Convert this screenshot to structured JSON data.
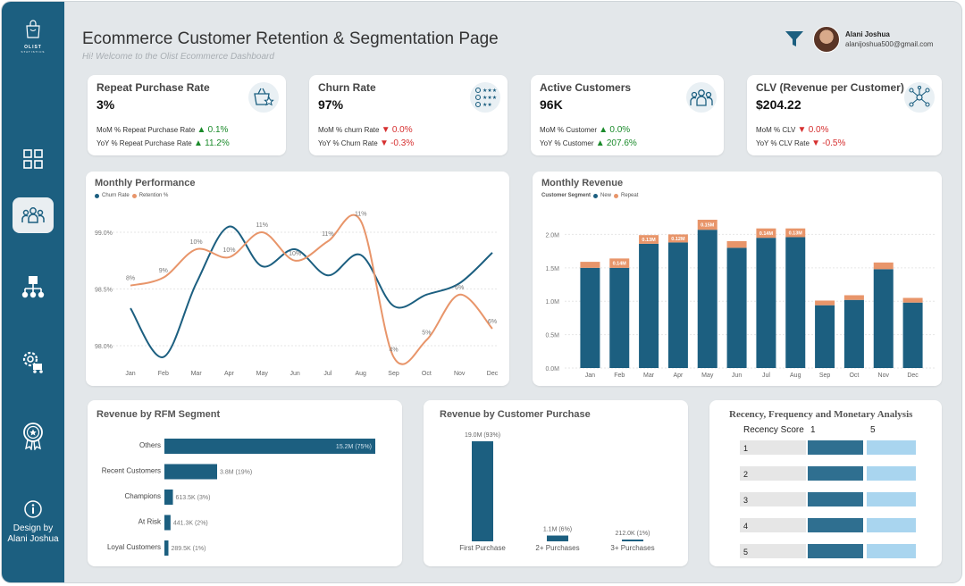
{
  "colors": {
    "sidebar": "#1c5f80",
    "primary": "#1c5f80",
    "secondary": "#e8956a",
    "light": "#a9d5ef",
    "up": "#1a8a2a",
    "down": "#d63030"
  },
  "sidebar": {
    "logo_text": "OLIST",
    "logo_subtext": "STATISTICS",
    "icons": [
      "grid-icon",
      "people-icon",
      "network-icon",
      "settings-truck-icon",
      "award-icon",
      "info-icon"
    ],
    "design_by": [
      "Design by",
      "Alani Joshua"
    ]
  },
  "header": {
    "title": "Ecommerce Customer Retention & Segmentation Page",
    "subtitle": "Hi! Welcome to the Olist Ecommerce Dashboard",
    "user_name": "Alani Joshua",
    "user_email": "alanijoshua500@gmail.com"
  },
  "kpis": [
    {
      "title": "Repeat Purchase Rate",
      "value": "3%",
      "icon": "basket-star-icon",
      "mom_label": "MoM % Repeat Purchase Rate",
      "mom_arrow": "▲",
      "mom_value": "0.1%",
      "mom_dir": "up",
      "yoy_label": "YoY % Repeat Purchase Rate",
      "yoy_arrow": "▲",
      "yoy_value": "11.2%",
      "yoy_dir": "up"
    },
    {
      "title": "Churn Rate",
      "value": "97%",
      "icon": "rating-people-icon",
      "mom_label": "MoM % churn Rate",
      "mom_arrow": "▼",
      "mom_value": "0.0%",
      "mom_dir": "down",
      "yoy_label": "YoY % Churn Rate",
      "yoy_arrow": "▼",
      "yoy_value": "-0.3%",
      "yoy_dir": "down"
    },
    {
      "title": "Active Customers",
      "value": "96K",
      "icon": "group-icon",
      "mom_label": "MoM % Customer",
      "mom_arrow": "▲",
      "mom_value": "0.0%",
      "mom_dir": "up",
      "yoy_label": "YoY % Customer",
      "yoy_arrow": "▲",
      "yoy_value": "207.6%",
      "yoy_dir": "up"
    },
    {
      "title": "CLV (Revenue per Customer)",
      "value": "$204.22",
      "icon": "network-nodes-icon",
      "mom_label": "MoM % CLV",
      "mom_arrow": "▼",
      "mom_value": "0.0%",
      "mom_dir": "down",
      "yoy_label": "YoY % CLV Rate",
      "yoy_arrow": "▼",
      "yoy_value": "-0.5%",
      "yoy_dir": "down"
    }
  ],
  "chart_data": [
    {
      "type": "line",
      "title": "Monthly Performance",
      "categories": [
        "Jan",
        "Feb",
        "Mar",
        "Apr",
        "May",
        "Jun",
        "Jul",
        "Aug",
        "Sep",
        "Oct",
        "Nov",
        "Dec"
      ],
      "y_ticks": [
        "99.0%",
        "98.5%",
        "98.0%"
      ],
      "series": [
        {
          "name": "Churn Rate",
          "color": "#1c5f80",
          "values": [
            98.33,
            97.9,
            98.55,
            99.05,
            98.7,
            98.85,
            98.62,
            98.8,
            98.35,
            98.45,
            98.55,
            98.82
          ]
        },
        {
          "name": "Retention %",
          "color": "#e8956a",
          "values": [
            98.53,
            98.6,
            98.85,
            98.78,
            99.0,
            98.75,
            98.92,
            99.1,
            97.9,
            98.05,
            98.45,
            98.15
          ],
          "labels": [
            "8%",
            "9%",
            "10%",
            "10%",
            "11%",
            "10%",
            "11%",
            "11%",
            "4%",
            "5%",
            "6%",
            "6%"
          ]
        }
      ]
    },
    {
      "type": "bar",
      "title": "Monthly Revenue",
      "legend_title": "Customer Segment",
      "categories": [
        "Jan",
        "Feb",
        "Mar",
        "Apr",
        "May",
        "Jun",
        "Jul",
        "Aug",
        "Sep",
        "Oct",
        "Nov",
        "Dec"
      ],
      "y_ticks": [
        "2.0M",
        "1.5M",
        "1.0M",
        "0.5M",
        "0.0M"
      ],
      "ylim": [
        0,
        2.3
      ],
      "series": [
        {
          "name": "New",
          "color": "#1c5f80",
          "values": [
            1.5,
            1.5,
            1.86,
            1.88,
            2.07,
            1.8,
            1.95,
            1.96,
            0.94,
            1.02,
            1.48,
            0.98
          ]
        },
        {
          "name": "Repeat",
          "color": "#e8956a",
          "values": [
            0.09,
            0.14,
            0.13,
            0.12,
            0.15,
            0.1,
            0.14,
            0.13,
            0.07,
            0.07,
            0.1,
            0.07
          ]
        }
      ],
      "repeat_labels": [
        "",
        "0.14M",
        "0.13M",
        "0.12M",
        "0.15M",
        "",
        "0.14M",
        "0.13M",
        "",
        "",
        "",
        ""
      ]
    },
    {
      "type": "bar",
      "title": "Revenue by RFM Segment",
      "orientation": "horizontal",
      "categories": [
        "Others",
        "Recent Customers",
        "Champions",
        "At Risk",
        "Loyal Customers"
      ],
      "values": [
        15.2,
        3.8,
        0.6135,
        0.4413,
        0.2895
      ],
      "labels": [
        "15.2M (75%)",
        "3.8M (19%)",
        "613.5K (3%)",
        "441.3K (2%)",
        "289.5K (1%)"
      ]
    },
    {
      "type": "bar",
      "title": "Revenue by Customer Purchase",
      "categories": [
        "First Purchase",
        "2+ Purchases",
        "3+ Purchases"
      ],
      "values": [
        19.0,
        1.1,
        0.212
      ],
      "labels": [
        "19.0M (93%)",
        "1.1M (6%)",
        "212.0K (1%)"
      ]
    },
    {
      "type": "table",
      "title": "Recency, Frequency and Monetary Analysis",
      "header": {
        "label": "Recency Score",
        "col1": "1",
        "col2": "5"
      },
      "rows": [
        "1",
        "2",
        "3",
        "4",
        "5"
      ]
    }
  ]
}
